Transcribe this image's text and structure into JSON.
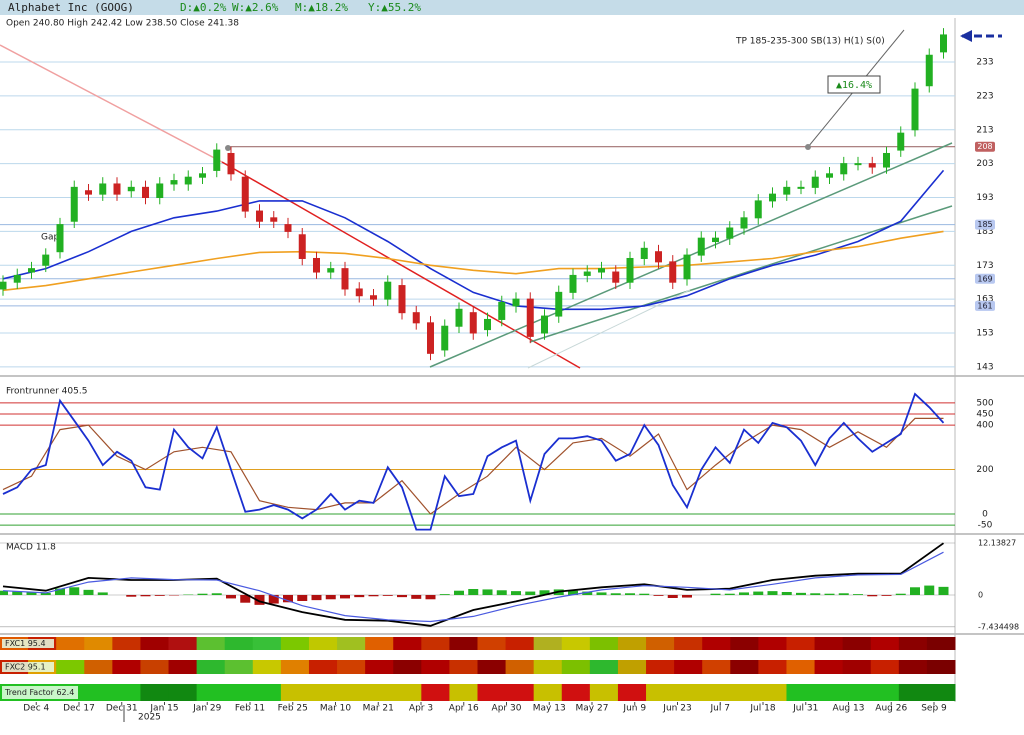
{
  "chart_data": {
    "type": "candlestick",
    "title": "Alphabet Inc (GOOG)",
    "changes": [
      "D:▲0.2%",
      "W:▲2.6%",
      "M:▲18.2%",
      "Y:▲55.2%"
    ],
    "ohlc_label": "Open 240.80 High 242.42 Low 238.50 Close 241.38",
    "annotations": {
      "target": "TP 185-235-300 SB(13) H(1) S(0)",
      "gain": "▲16.4%",
      "gap": "Gap"
    },
    "up_color": "#22b022",
    "down_color": "#cc2222",
    "x": [
      0,
      3,
      6,
      9,
      12,
      15,
      18,
      21,
      24,
      27,
      30,
      33,
      36,
      39,
      42,
      45,
      48,
      51,
      54,
      57,
      60,
      63,
      66,
      69,
      72,
      75,
      78,
      81,
      84,
      87,
      90,
      93,
      96,
      99,
      102,
      105,
      108,
      111,
      114,
      117,
      120,
      123,
      126,
      129,
      132,
      135,
      138,
      141,
      144,
      147,
      150,
      153,
      156,
      159,
      162,
      165,
      168,
      171,
      174,
      177,
      180,
      183,
      186,
      189,
      192,
      195,
      198
    ],
    "open": [
      166,
      168,
      171,
      173,
      177,
      186,
      195,
      194,
      197,
      195,
      196,
      193,
      197,
      197,
      199,
      201,
      206,
      199,
      189,
      187,
      185,
      182,
      175,
      171,
      172,
      166,
      164,
      163,
      167,
      159,
      156,
      148,
      155,
      159,
      154,
      157,
      161,
      163,
      153,
      158,
      165,
      170,
      171,
      171,
      168,
      175,
      177,
      174,
      169,
      176,
      180,
      181,
      184,
      187,
      192,
      194,
      196,
      196,
      199,
      200,
      203,
      203,
      202,
      207,
      213,
      226,
      236
    ],
    "high": [
      170,
      172,
      174,
      178,
      187,
      198,
      197,
      199,
      199,
      198,
      198,
      199,
      200,
      201,
      202,
      209,
      208,
      201,
      191,
      189,
      187,
      184,
      177,
      174,
      174,
      168,
      166,
      170,
      169,
      161,
      158,
      157,
      162,
      161,
      159,
      164,
      165,
      165,
      160,
      167,
      172,
      173,
      174,
      173,
      177,
      180,
      179,
      176,
      178,
      183,
      183,
      186,
      189,
      194,
      196,
      198,
      198,
      201,
      202,
      205,
      205,
      205,
      208,
      214,
      227,
      237,
      243
    ],
    "low": [
      164,
      166,
      169,
      171,
      175,
      184,
      192,
      192,
      192,
      193,
      191,
      191,
      195,
      195,
      197,
      199,
      198,
      187,
      184,
      184,
      181,
      173,
      169,
      169,
      164,
      162,
      161,
      161,
      157,
      154,
      145,
      146,
      153,
      151,
      152,
      155,
      159,
      150,
      151,
      156,
      163,
      168,
      169,
      166,
      166,
      173,
      172,
      166,
      167,
      174,
      178,
      179,
      182,
      185,
      190,
      192,
      194,
      194,
      197,
      198,
      201,
      200,
      200,
      205,
      211,
      224,
      234
    ],
    "close": [
      168,
      170,
      172,
      176,
      185,
      196,
      194,
      197,
      194,
      196,
      193,
      197,
      198,
      199,
      200,
      207,
      200,
      189,
      186,
      186,
      183,
      175,
      171,
      172,
      166,
      164,
      163,
      168,
      159,
      156,
      147,
      155,
      160,
      153,
      157,
      162,
      163,
      152,
      158,
      165,
      170,
      171,
      172,
      168,
      175,
      178,
      174,
      168,
      176,
      181,
      181,
      184,
      187,
      192,
      194,
      196,
      196,
      199,
      200,
      203,
      203,
      202,
      206,
      212,
      225,
      235,
      241
    ],
    "xlim": [
      0,
      200
    ],
    "xticks": [
      {
        "value": 7,
        "label": "Dec 4"
      },
      {
        "value": 16,
        "label": "Dec 17"
      },
      {
        "value": 25,
        "label": "Dec 31"
      },
      {
        "value": 34,
        "label": "Jan 15"
      },
      {
        "value": 43,
        "label": "Jan 29"
      },
      {
        "value": 52,
        "label": "Feb 11"
      },
      {
        "value": 61,
        "label": "Feb 25"
      },
      {
        "value": 70,
        "label": "Mar 10"
      },
      {
        "value": 79,
        "label": "Mar 21"
      },
      {
        "value": 88,
        "label": "Apr 3"
      },
      {
        "value": 97,
        "label": "Apr 16"
      },
      {
        "value": 106,
        "label": "Apr 30"
      },
      {
        "value": 115,
        "label": "May 13"
      },
      {
        "value": 124,
        "label": "May 27"
      },
      {
        "value": 133,
        "label": "Jun 9"
      },
      {
        "value": 142,
        "label": "Jun 23"
      },
      {
        "value": 151,
        "label": "Jul 7"
      },
      {
        "value": 160,
        "label": "Jul 18"
      },
      {
        "value": 169,
        "label": "Jul 31"
      },
      {
        "value": 178,
        "label": "Aug 13"
      },
      {
        "value": 187,
        "label": "Aug 26"
      },
      {
        "value": 196,
        "label": "Sep 9"
      }
    ],
    "year_label": "2025",
    "ylim": [
      140.6,
      246
    ],
    "yticks": [
      233,
      223,
      213,
      203,
      193,
      183,
      173,
      163,
      153,
      143
    ],
    "levels": [
      208,
      185,
      169,
      161
    ],
    "moving_averages": {
      "x": [
        0,
        9,
        18,
        27,
        36,
        45,
        54,
        63,
        72,
        81,
        90,
        99,
        108,
        117,
        126,
        135,
        144,
        153,
        162,
        171,
        180,
        189,
        198
      ],
      "series": [
        {
          "color": "#1a2fd0",
          "values": [
            169,
            172,
            177,
            183,
            187,
            189,
            192,
            192,
            187,
            180,
            172,
            165,
            161,
            160,
            160,
            161,
            164,
            169,
            173,
            176,
            180,
            186,
            201
          ]
        },
        {
          "color": "#f0a020",
          "values": [
            165.6,
            167,
            169,
            171,
            173,
            175,
            176.8,
            177,
            176.5,
            175,
            173,
            171.5,
            170.5,
            172,
            172,
            172.5,
            173,
            174,
            175,
            177,
            178.5,
            181,
            183
          ]
        }
      ]
    },
    "frontrunner": {
      "label": "Frontrunner 405.5",
      "ylim": [
        -81,
        603
      ],
      "yticks": [
        500,
        450,
        400,
        200,
        0,
        -50
      ],
      "tick_colors": [
        "#d03030",
        "#d03030",
        "#d03030",
        "#e0a020",
        "#30a030",
        "#30a030"
      ],
      "fast": {
        "color": "#1a2fd0",
        "x": [
          0,
          3,
          6,
          9,
          12,
          15,
          18,
          21,
          24,
          27,
          30,
          33,
          36,
          39,
          42,
          45,
          48,
          51,
          54,
          57,
          60,
          63,
          66,
          69,
          72,
          75,
          78,
          81,
          84,
          87,
          90,
          93,
          96,
          99,
          102,
          105,
          108,
          111,
          114,
          117,
          120,
          123,
          126,
          129,
          132,
          135,
          138,
          141,
          144,
          147,
          150,
          153,
          156,
          159,
          162,
          165,
          168,
          171,
          174,
          177,
          180,
          183,
          186,
          189,
          192,
          195,
          198
        ],
        "values": [
          90,
          120,
          200,
          220,
          510,
          420,
          330,
          220,
          280,
          240,
          120,
          110,
          380,
          300,
          250,
          390,
          200,
          10,
          20,
          40,
          20,
          -20,
          20,
          90,
          20,
          60,
          50,
          210,
          120,
          -70,
          -70,
          170,
          80,
          90,
          260,
          300,
          330,
          60,
          270,
          340,
          340,
          350,
          330,
          240,
          270,
          400,
          310,
          130,
          30,
          200,
          300,
          230,
          380,
          320,
          410,
          390,
          330,
          220,
          340,
          410,
          340,
          280,
          320,
          360,
          540,
          480,
          410
        ]
      },
      "slow": {
        "color": "#a0522d",
        "x": [
          0,
          6,
          12,
          18,
          24,
          30,
          36,
          42,
          48,
          54,
          60,
          66,
          72,
          78,
          84,
          90,
          96,
          102,
          108,
          114,
          120,
          126,
          132,
          138,
          144,
          150,
          156,
          162,
          168,
          174,
          180,
          186,
          192,
          198
        ],
        "values": [
          110,
          170,
          380,
          400,
          260,
          200,
          280,
          300,
          280,
          60,
          30,
          20,
          50,
          50,
          150,
          0,
          90,
          170,
          300,
          200,
          320,
          340,
          260,
          360,
          110,
          220,
          320,
          400,
          380,
          300,
          370,
          300,
          430,
          430
        ]
      }
    },
    "macd": {
      "label": "MACD 11.8",
      "ylim": [
        -8.64,
        13.54
      ],
      "yticks": [
        12.13827,
        0,
        -7.434498
      ],
      "x": [
        0,
        9,
        18,
        27,
        36,
        45,
        54,
        63,
        72,
        81,
        90,
        99,
        108,
        117,
        126,
        135,
        144,
        153,
        162,
        171,
        180,
        189,
        198
      ],
      "series": [
        {
          "color": "#000000",
          "values": [
            2,
            1,
            4,
            3.5,
            3.5,
            3.8,
            -1.5,
            -4,
            -5.8,
            -6,
            -7.2,
            -3.5,
            -1.5,
            0.8,
            1.8,
            2.5,
            1.2,
            1.5,
            3.5,
            4.5,
            5,
            5,
            12.1
          ]
        },
        {
          "color": "#4a5ae0",
          "values": [
            1,
            0.5,
            3,
            4,
            3.6,
            3.5,
            1,
            -2.5,
            -4.8,
            -5.8,
            -6.2,
            -5,
            -2.5,
            -0.5,
            1.2,
            2.2,
            1.8,
            1.2,
            2.5,
            4,
            4.7,
            4.8,
            10
          ]
        }
      ],
      "hist_x": [
        0,
        3,
        6,
        9,
        12,
        15,
        18,
        21,
        24,
        27,
        30,
        33,
        36,
        39,
        42,
        45,
        48,
        51,
        54,
        57,
        60,
        63,
        66,
        69,
        72,
        75,
        78,
        81,
        84,
        87,
        90,
        93,
        96,
        99,
        102,
        105,
        108,
        111,
        114,
        117,
        120,
        123,
        126,
        129,
        132,
        135,
        138,
        141,
        144,
        147,
        150,
        153,
        156,
        159,
        162,
        165,
        168,
        171,
        174,
        177,
        180,
        183,
        186,
        189,
        192,
        195,
        198
      ],
      "histogram": [
        1,
        0.8,
        0.6,
        0.5,
        1.5,
        1.8,
        1.2,
        0.6,
        0,
        -0.4,
        -0.3,
        -0.2,
        -0.1,
        0.1,
        0.3,
        0.4,
        -0.8,
        -1.8,
        -2.3,
        -2,
        -1.7,
        -1.4,
        -1.2,
        -1,
        -0.8,
        -0.5,
        -0.3,
        -0.2,
        -0.5,
        -0.9,
        -1,
        0.2,
        1,
        1.4,
        1.3,
        1.1,
        0.9,
        0.8,
        1.1,
        1.3,
        1,
        0.8,
        0.6,
        0.4,
        0.4,
        0.3,
        -0.2,
        -0.7,
        -0.6,
        0,
        0.3,
        0.3,
        0.6,
        0.8,
        0.9,
        0.7,
        0.5,
        0.4,
        0.3,
        0.4,
        0.2,
        -0.3,
        -0.2,
        0.3,
        1.8,
        2.2,
        1.9
      ],
      "pos_color": "#22b022",
      "neg_color": "#b01010"
    },
    "strips": [
      {
        "label": "FXC1 95.4",
        "colors": [
          "#e05a00",
          "#c82000",
          "#e07000",
          "#e08a00",
          "#c83000",
          "#a00000",
          "#b01010",
          "#5cc030",
          "#2eb82e",
          "#38c038",
          "#7cc800",
          "#c0c800",
          "#a0c020",
          "#e06000",
          "#b00000",
          "#c83000",
          "#8b0000",
          "#d04000",
          "#c82000",
          "#b0b020",
          "#c8c800",
          "#7cc000",
          "#c0a000",
          "#d06000",
          "#c83000",
          "#b00000",
          "#8b0000",
          "#b00000",
          "#c82000",
          "#a00000",
          "#8b0000",
          "#b00000",
          "#8b0000",
          "#7a0000"
        ]
      },
      {
        "label": "FXC2 95.1",
        "colors": [
          "#c82000",
          "#e0a000",
          "#7cc800",
          "#d06000",
          "#b00000",
          "#c84000",
          "#a00000",
          "#2eb82e",
          "#5cc030",
          "#c8c800",
          "#e08000",
          "#c82000",
          "#d04000",
          "#b00000",
          "#8b0000",
          "#b00000",
          "#c83000",
          "#8b0000",
          "#d06000",
          "#c0c000",
          "#7cc000",
          "#2eb82e",
          "#c0a000",
          "#c82000",
          "#b00000",
          "#d04000",
          "#8b0000",
          "#c82000",
          "#e06000",
          "#b00000",
          "#a00000",
          "#c82000",
          "#8b0000",
          "#7a0000"
        ]
      },
      {
        "label": "Trend Factor 62.4",
        "colors": [
          "#22c022",
          "#22c022",
          "#22c022",
          "#22c022",
          "#22c022",
          "#118811",
          "#118811",
          "#22c022",
          "#22c022",
          "#22c022",
          "#c8c000",
          "#c8c000",
          "#c8c000",
          "#c8c000",
          "#c8c000",
          "#d01010",
          "#c8c000",
          "#d01010",
          "#d01010",
          "#c8c000",
          "#d01010",
          "#c8c000",
          "#d01010",
          "#c8c000",
          "#c8c000",
          "#c8c000",
          "#c8c000",
          "#c8c000",
          "#22c022",
          "#22c022",
          "#22c022",
          "#22c022",
          "#118811",
          "#118811"
        ]
      }
    ]
  }
}
